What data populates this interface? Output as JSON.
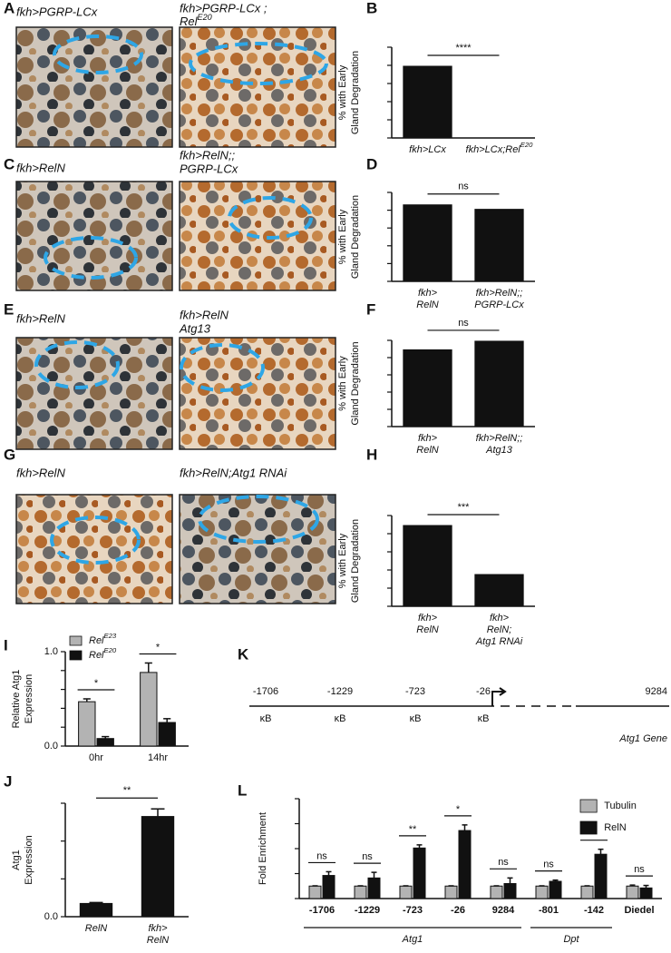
{
  "panel_labels": [
    "A",
    "B",
    "C",
    "D",
    "E",
    "F",
    "G",
    "H",
    "I",
    "J",
    "K",
    "L"
  ],
  "images": [
    {
      "caption": [
        "fkh>PGRP-LCx"
      ]
    },
    {
      "caption": [
        "fkh>PGRP-LCx ;",
        {
          "text": "Rel",
          "sup": "E20"
        }
      ]
    },
    {
      "caption": [
        "fkh>RelN"
      ]
    },
    {
      "caption": [
        "fkh>RelN;;",
        "PGRP-LCx"
      ]
    },
    {
      "caption": [
        "fkh>RelN"
      ]
    },
    {
      "caption": [
        "fkh>RelN",
        "Atg13"
      ]
    },
    {
      "caption": [
        "fkh>RelN"
      ]
    },
    {
      "caption": [
        "fkh>RelN;Atg1 RNAi"
      ]
    }
  ],
  "gene_map": {
    "sites": [
      {
        "position": "-1706",
        "motif": "κB"
      },
      {
        "position": "-1229",
        "motif": "κB"
      },
      {
        "position": "-723",
        "motif": "κB"
      },
      {
        "position": "-26",
        "motif": "κB"
      }
    ],
    "end_position": "9284",
    "gene": "Atg1 Gene"
  },
  "chart_data": [
    {
      "type": "bar",
      "ylabel": [
        "% with Early",
        "Gland Degradation"
      ],
      "categories": [
        [
          "fkh>LCx"
        ],
        [
          {
            "text": "fkh>LCx;Rel",
            "sup": "E20"
          }
        ]
      ],
      "values": [
        79,
        0
      ],
      "color": "#111111",
      "comparison": "****",
      "ylim": [
        0,
        100
      ],
      "yticks": [
        0,
        20,
        40,
        60,
        80,
        100
      ]
    },
    {
      "type": "bar",
      "ylabel": [
        "% with Early",
        "Gland Degradation"
      ],
      "categories": [
        [
          "fkh>",
          "RelN"
        ],
        [
          "fkh>RelN;;",
          "PGRP-LCx"
        ]
      ],
      "values": [
        86,
        81
      ],
      "color": "#111111",
      "comparison": "ns",
      "ylim": [
        0,
        100
      ],
      "yticks": [
        0,
        20,
        40,
        60,
        80,
        100
      ]
    },
    {
      "type": "bar",
      "ylabel": [
        "% with Early",
        "Gland Degradation"
      ],
      "categories": [
        [
          "fkh>",
          "RelN"
        ],
        [
          "fkh>RelN;;",
          "Atg13"
        ]
      ],
      "values": [
        89,
        99
      ],
      "color": "#111111",
      "comparison": "ns",
      "ylim": [
        0,
        100
      ],
      "yticks": [
        0,
        20,
        40,
        60,
        80,
        100
      ]
    },
    {
      "type": "bar",
      "ylabel": [
        "% with Early",
        "Gland Degradation"
      ],
      "categories": [
        [
          "fkh>",
          "RelN"
        ],
        [
          "fkh>",
          "RelN;",
          "Atg1 RNAi"
        ]
      ],
      "values": [
        89,
        35
      ],
      "color": "#111111",
      "comparison": "***",
      "ylim": [
        0,
        100
      ],
      "yticks": [
        0,
        20,
        40,
        60,
        80,
        100
      ]
    },
    {
      "type": "bar",
      "ylabel": [
        "Relative Atg1",
        "Expression"
      ],
      "categories": [
        "0hr",
        "14hr"
      ],
      "series": [
        {
          "name": {
            "text": "Rel",
            "sup": "E23"
          },
          "color": "#b3b3b3",
          "values": [
            0.47,
            0.78
          ],
          "errors": [
            0.03,
            0.1
          ]
        },
        {
          "name": {
            "text": "Rel",
            "sup": "E20"
          },
          "color": "#111111",
          "values": [
            0.08,
            0.25
          ],
          "errors": [
            0.02,
            0.04
          ]
        }
      ],
      "significance": [
        "*",
        "*"
      ],
      "legend": "top-left",
      "ylim": [
        0,
        1.0
      ],
      "yticks": [
        {
          "value": 0,
          "label": "0.0"
        },
        0.2,
        0.4,
        0.6,
        0.8,
        {
          "value": 1,
          "label": "1.0"
        }
      ]
    },
    {
      "type": "bar",
      "ylabel": [
        "Atg1",
        "Expression"
      ],
      "categories": [
        "RelN",
        [
          "fkh>",
          "RelN"
        ]
      ],
      "values": [
        0.07,
        0.53
      ],
      "errors": [
        0.005,
        0.04
      ],
      "color": "#111111",
      "comparison": "**",
      "ylim": [
        0,
        0.6
      ],
      "yticks": [
        {
          "value": 0,
          "label": "0.0"
        },
        0.2,
        0.4,
        0.6
      ]
    },
    {
      "type": "bar",
      "ylabel": [
        "Fold Enrichment"
      ],
      "categories": [
        "-1706",
        "-1229",
        "-723",
        "-26",
        "9284",
        "-801",
        "-142",
        "Diedel"
      ],
      "series": [
        {
          "name": "Tubulin",
          "color": "#b3b3b3",
          "values": [
            1,
            1,
            1,
            1,
            1,
            1,
            1,
            1
          ],
          "errors": [
            0.02,
            0.02,
            0.02,
            0.02,
            0.02,
            0.02,
            0.02,
            0.08
          ]
        },
        {
          "name": "RelN",
          "color": "#111111",
          "values": [
            1.85,
            1.65,
            4.05,
            5.45,
            1.2,
            1.38,
            3.55,
            0.85
          ],
          "errors": [
            0.3,
            0.45,
            0.25,
            0.45,
            0.45,
            0.1,
            0.4,
            0.2
          ]
        }
      ],
      "significance": [
        "ns",
        "ns",
        "**",
        "*",
        "ns",
        "ns",
        "*",
        "ns"
      ],
      "groups": [
        {
          "label": "Atg1",
          "span": [
            0,
            4
          ]
        },
        {
          "label": "Dpt",
          "span": [
            5,
            6
          ]
        }
      ],
      "legend": "top-right",
      "ylim": [
        0,
        8
      ],
      "yticks": [
        0,
        2,
        4,
        6,
        8
      ]
    }
  ]
}
